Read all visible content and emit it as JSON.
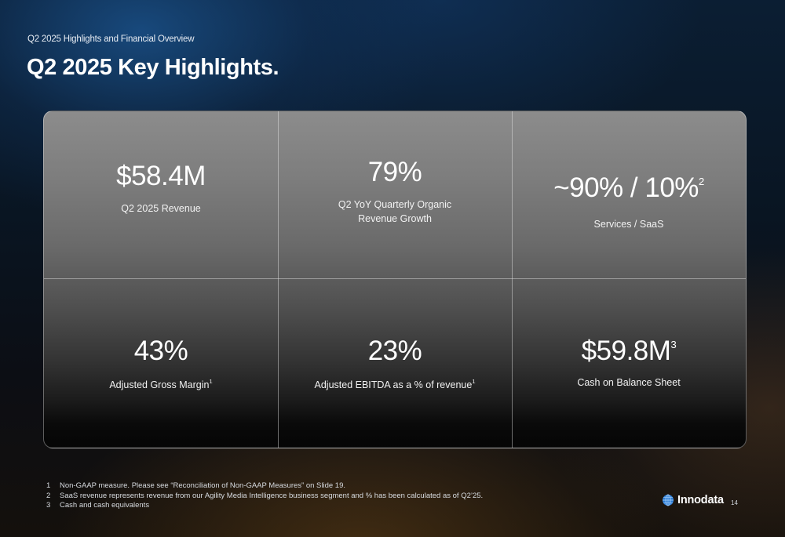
{
  "header": {
    "breadcrumb": "Q2 2025 Highlights and Financial Overview",
    "title": "Q2 2025 Key Highlights."
  },
  "highlights": [
    {
      "value": "$58.4M",
      "sup": "",
      "label_line1": "Q2 2025 Revenue",
      "label_line2": "",
      "label_sup": ""
    },
    {
      "value": "79%",
      "sup": "",
      "label_line1": "Q2 YoY Quarterly Organic",
      "label_line2": "Revenue Growth",
      "label_sup": ""
    },
    {
      "value": "~90% / 10%",
      "sup": "2",
      "label_line1": "Services / SaaS",
      "label_line2": "",
      "label_sup": ""
    },
    {
      "value": "43%",
      "sup": "",
      "label_line1": "Adjusted Gross Margin",
      "label_line2": "",
      "label_sup": "1"
    },
    {
      "value": "23%",
      "sup": "",
      "label_line1": "Adjusted EBITDA as a % of revenue",
      "label_line2": "",
      "label_sup": "1"
    },
    {
      "value": "$59.8M",
      "sup": "3",
      "label_line1": "Cash on Balance Sheet",
      "label_line2": "",
      "label_sup": ""
    }
  ],
  "footnotes": [
    {
      "num": "1",
      "text": "Non-GAAP measure. Please see “Reconciliation of Non-GAAP Measures” on Slide 19."
    },
    {
      "num": "2",
      "text": "SaaS revenue represents revenue from our Agility Media Intelligence business segment and % has been calculated as of Q2’25."
    },
    {
      "num": "3",
      "text": "Cash and cash equivalents"
    }
  ],
  "brand": {
    "name": "Innodata",
    "icon": "globe-logo-icon",
    "color": "#2f7fd8"
  },
  "page_number": "14"
}
